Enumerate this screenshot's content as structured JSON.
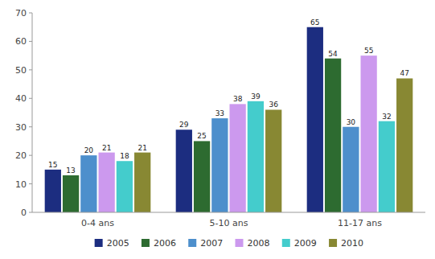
{
  "chart_data": {
    "type": "bar",
    "categories": [
      "0-4 ans",
      "5-10 ans",
      "11-17 ans"
    ],
    "series": [
      {
        "name": "2005",
        "color": "#1C2D80",
        "values": [
          15,
          29,
          65
        ]
      },
      {
        "name": "2006",
        "color": "#2D6B30",
        "values": [
          13,
          25,
          54
        ]
      },
      {
        "name": "2007",
        "color": "#4D8FCC",
        "values": [
          20,
          33,
          30
        ]
      },
      {
        "name": "2008",
        "color": "#CC99EE",
        "values": [
          21,
          38,
          55
        ]
      },
      {
        "name": "2009",
        "color": "#44CCCC",
        "values": [
          18,
          39,
          32
        ]
      },
      {
        "name": "2010",
        "color": "#888833",
        "values": [
          21,
          36,
          47
        ]
      }
    ],
    "ylim": [
      0,
      70
    ],
    "yticks": [
      0,
      10,
      20,
      30,
      40,
      50,
      60,
      70
    ],
    "data_labels": true,
    "grid": false,
    "legend": "bottom"
  }
}
